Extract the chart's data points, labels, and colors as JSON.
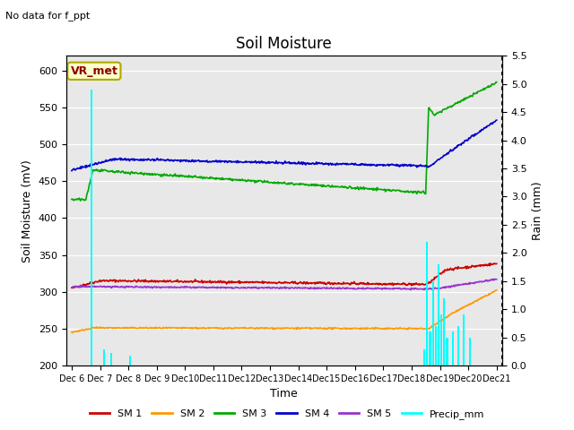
{
  "title": "Soil Moisture",
  "xlabel": "Time",
  "ylabel_left": "Soil Moisture (mV)",
  "ylabel_right": "Rain (mm)",
  "note": "No data for f_ppt",
  "vr_met_label": "VR_met",
  "ylim_left": [
    200,
    620
  ],
  "ylim_right": [
    0.0,
    5.5
  ],
  "yticks_left": [
    200,
    250,
    300,
    350,
    400,
    450,
    500,
    550,
    600
  ],
  "yticks_right": [
    0.0,
    0.5,
    1.0,
    1.5,
    2.0,
    2.5,
    3.0,
    3.5,
    4.0,
    4.5,
    5.0,
    5.5
  ],
  "bg_color": "#e8e8e8",
  "fig_color": "#ffffff",
  "sm1_color": "#cc0000",
  "sm2_color": "#ff9900",
  "sm3_color": "#00aa00",
  "sm4_color": "#0000cc",
  "sm5_color": "#9933cc",
  "precip_color": "#00ffff",
  "legend_entries": [
    "SM 1",
    "SM 2",
    "SM 3",
    "SM 4",
    "SM 5",
    "Precip_mm"
  ],
  "precip_events": [
    [
      0.7,
      4.9
    ],
    [
      1.15,
      0.28
    ],
    [
      1.4,
      0.22
    ],
    [
      2.05,
      0.18
    ],
    [
      12.45,
      0.28
    ],
    [
      12.55,
      2.2
    ],
    [
      12.65,
      0.6
    ],
    [
      12.75,
      1.5
    ],
    [
      12.85,
      0.7
    ],
    [
      12.95,
      1.8
    ],
    [
      13.05,
      0.9
    ],
    [
      13.15,
      1.2
    ],
    [
      13.25,
      0.5
    ],
    [
      13.45,
      0.6
    ],
    [
      13.65,
      0.7
    ],
    [
      13.85,
      0.9
    ],
    [
      14.05,
      0.5
    ]
  ]
}
